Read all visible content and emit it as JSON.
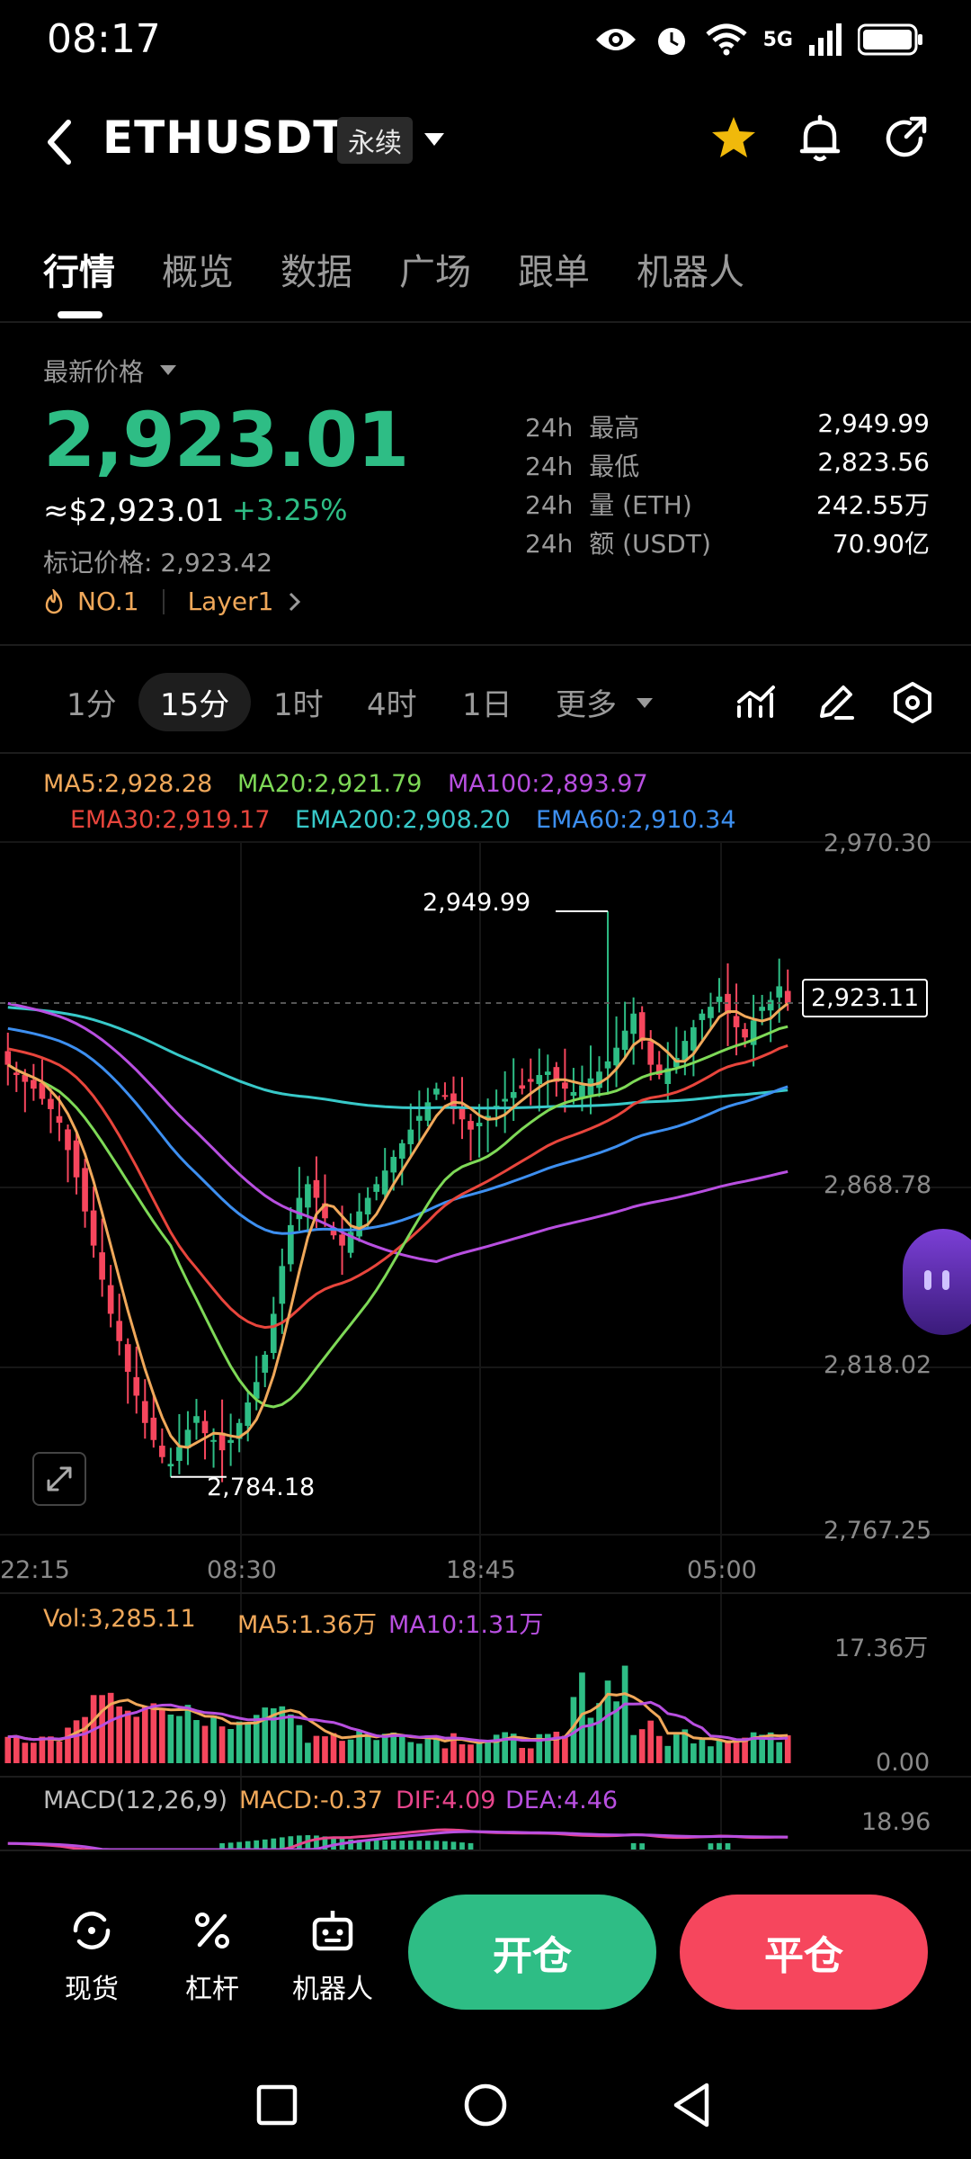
{
  "status_bar": {
    "time": "08:17",
    "network": "5G"
  },
  "header": {
    "title": "ETHUSDT",
    "badge": "永续",
    "icons": [
      "back-arrow-icon",
      "star-icon",
      "bell-icon",
      "share-icon"
    ],
    "star_color": "#f0b90b"
  },
  "tabs": [
    {
      "label": "行情",
      "active": true
    },
    {
      "label": "概览",
      "active": false
    },
    {
      "label": "数据",
      "active": false
    },
    {
      "label": "广场",
      "active": false
    },
    {
      "label": "跟单",
      "active": false
    },
    {
      "label": "机器人",
      "active": false
    }
  ],
  "price": {
    "label": "最新价格",
    "last": "2,923.01",
    "usd": "≈$2,923.01",
    "change": "+3.25%",
    "mark_label": "标记价格:",
    "mark_value": "2,923.42",
    "rank_tag": "NO.1",
    "sector_tag": "Layer1",
    "up_color": "#2ebd85",
    "down_color": "#f6465d"
  },
  "stats": [
    {
      "period": "24h",
      "key": "最高",
      "value": "2,949.99"
    },
    {
      "period": "24h",
      "key": "最低",
      "value": "2,823.56"
    },
    {
      "period": "24h",
      "key": "量 (ETH)",
      "value": "242.55万"
    },
    {
      "period": "24h",
      "key": "额 (USDT)",
      "value": "70.90亿"
    }
  ],
  "intervals": [
    {
      "label": "1分",
      "active": false
    },
    {
      "label": "15分",
      "active": true
    },
    {
      "label": "1时",
      "active": false
    },
    {
      "label": "4时",
      "active": false
    },
    {
      "label": "1日",
      "active": false
    },
    {
      "label": "更多",
      "active": false
    }
  ],
  "indicators_main": [
    {
      "text": "MA5:2,928.28",
      "color": "#f0a85a"
    },
    {
      "text": "MA20:2,921.79",
      "color": "#7ed957"
    },
    {
      "text": "MA100:2,893.97",
      "color": "#b84fe0"
    },
    {
      "text": "EMA30:2,919.17",
      "color": "#e8453c"
    },
    {
      "text": "EMA200:2,908.20",
      "color": "#38c9c9"
    },
    {
      "text": "EMA60:2,910.34",
      "color": "#3d8ff0"
    }
  ],
  "chart_data": [
    {
      "type": "candlestick",
      "title": "",
      "y_ticks": [
        "2,970.30",
        "2,868.78",
        "2,818.02",
        "2,767.25"
      ],
      "x_ticks": [
        "22:15",
        "08:30",
        "18:45",
        "05:00"
      ],
      "ylim": [
        2767.25,
        2970.3
      ],
      "high_label": "2,949.99",
      "low_label": "2,784.18",
      "last_price": "2,923.11",
      "ohlc_close": [
        2905,
        2902,
        2900,
        2898,
        2895,
        2892,
        2888,
        2880,
        2872,
        2862,
        2852,
        2842,
        2832,
        2824,
        2815,
        2808,
        2800,
        2795,
        2790,
        2788,
        2793,
        2798,
        2802,
        2797,
        2795,
        2792,
        2795,
        2800,
        2806,
        2812,
        2820,
        2832,
        2846,
        2858,
        2866,
        2870,
        2866,
        2860,
        2855,
        2852,
        2856,
        2862,
        2866,
        2870,
        2874,
        2878,
        2882,
        2886,
        2890,
        2894,
        2898,
        2896,
        2892,
        2889,
        2886,
        2888,
        2890,
        2893,
        2895,
        2897,
        2898,
        2900,
        2902,
        2903,
        2900,
        2898,
        2897,
        2899,
        2901,
        2903,
        2906,
        2910,
        2915,
        2920,
        2912,
        2905,
        2902,
        2904,
        2907,
        2912,
        2916,
        2920,
        2922,
        2925,
        2920,
        2916,
        2913,
        2918,
        2922,
        2924,
        2928,
        2923
      ],
      "volume_ylim": [
        0,
        17.36
      ],
      "volume_ticks": [
        "17.36万",
        "0.00"
      ],
      "macd_tick": "18.96"
    }
  ],
  "volume_legend": [
    {
      "text": "Vol:3,285.11",
      "color": "#f0a85a"
    },
    {
      "text": "MA5:1.36万",
      "color": "#f0a85a"
    },
    {
      "text": "MA10:1.31万",
      "color": "#b84fe0"
    }
  ],
  "macd_legend": [
    {
      "text": "MACD(12,26,9)",
      "color": "#bdbdbd"
    },
    {
      "text": "MACD:-0.37",
      "color": "#f0a85a"
    },
    {
      "text": "DIF:4.09",
      "color": "#e8458c"
    },
    {
      "text": "DEA:4.46",
      "color": "#b84fe0"
    }
  ],
  "bottom_bar": {
    "spot": "现货",
    "leverage": "杠杆",
    "robot": "机器人",
    "open": "开仓",
    "close": "平仓"
  }
}
